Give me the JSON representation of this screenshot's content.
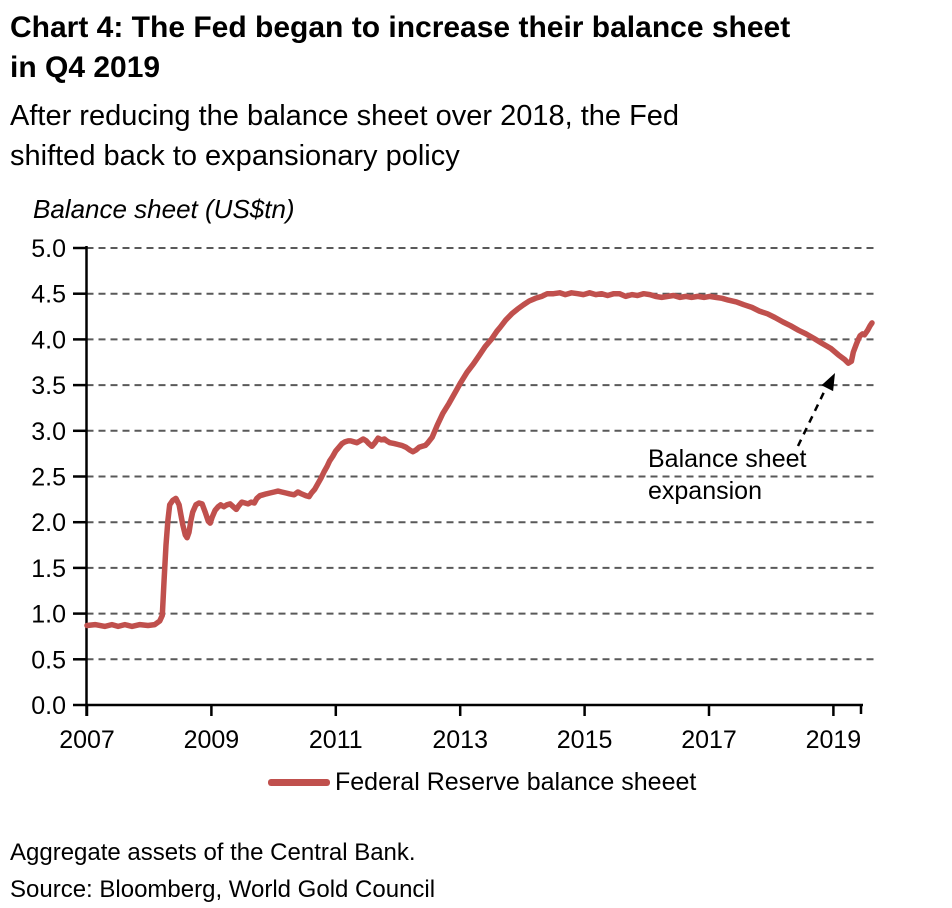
{
  "title": {
    "line1": "Chart 4: The Fed began to increase their balance sheet",
    "line2": "in Q4 2019"
  },
  "subtitle": {
    "line1": "After reducing the balance sheet over 2018, the Fed",
    "line2": "shifted back to expansionary policy"
  },
  "axis_title": "Balance sheet (US$tn)",
  "annotation": {
    "line1": "Balance sheet",
    "line2": "expansion"
  },
  "legend": {
    "label": "Federal Reserve balance sheeet"
  },
  "footnote": "Aggregate assets of the Central Bank.",
  "source": "Source: Bloomberg, World Gold Council",
  "colors": {
    "line": "#C0504D",
    "grid": "#595959",
    "axis": "#000000",
    "text": "#000000"
  },
  "chart_data": {
    "type": "line",
    "title": "Chart 4: The Fed began to increase their balance sheet in Q4 2019",
    "xlabel": "",
    "ylabel": "Balance sheet (US$tn)",
    "xlim": [
      2007,
      2019.72
    ],
    "ylim": [
      0,
      5
    ],
    "x_ticks": [
      2007,
      2009,
      2011,
      2013,
      2015,
      2017,
      2019
    ],
    "y_ticks": [
      0.0,
      0.5,
      1.0,
      1.5,
      2.0,
      2.5,
      3.0,
      3.5,
      4.0,
      4.5,
      5.0
    ],
    "grid": "horizontal-dashed",
    "legend_position": "bottom",
    "annotations": [
      {
        "text": "Balance sheet expansion",
        "arrow_points_to": [
          2019.24,
          3.74
        ]
      }
    ],
    "series": [
      {
        "name": "Federal Reserve balance sheeet",
        "color": "#C0504D",
        "points": [
          [
            2007.0,
            0.87
          ],
          [
            2007.13,
            0.88
          ],
          [
            2007.29,
            0.86
          ],
          [
            2007.4,
            0.88
          ],
          [
            2007.5,
            0.86
          ],
          [
            2007.61,
            0.88
          ],
          [
            2007.72,
            0.86
          ],
          [
            2007.85,
            0.88
          ],
          [
            2007.98,
            0.87
          ],
          [
            2008.09,
            0.88
          ],
          [
            2008.17,
            0.92
          ],
          [
            2008.21,
            0.98
          ],
          [
            2008.24,
            1.37
          ],
          [
            2008.27,
            1.75
          ],
          [
            2008.3,
            2.02
          ],
          [
            2008.33,
            2.19
          ],
          [
            2008.38,
            2.24
          ],
          [
            2008.43,
            2.26
          ],
          [
            2008.48,
            2.19
          ],
          [
            2008.51,
            2.08
          ],
          [
            2008.54,
            1.97
          ],
          [
            2008.58,
            1.86
          ],
          [
            2008.61,
            1.83
          ],
          [
            2008.64,
            1.89
          ],
          [
            2008.67,
            2.02
          ],
          [
            2008.7,
            2.11
          ],
          [
            2008.75,
            2.19
          ],
          [
            2008.8,
            2.21
          ],
          [
            2008.85,
            2.2
          ],
          [
            2008.9,
            2.11
          ],
          [
            2008.95,
            2.01
          ],
          [
            2008.98,
            1.99
          ],
          [
            2009.01,
            2.05
          ],
          [
            2009.06,
            2.13
          ],
          [
            2009.11,
            2.17
          ],
          [
            2009.15,
            2.19
          ],
          [
            2009.2,
            2.17
          ],
          [
            2009.25,
            2.19
          ],
          [
            2009.3,
            2.2
          ],
          [
            2009.35,
            2.17
          ],
          [
            2009.4,
            2.14
          ],
          [
            2009.44,
            2.18
          ],
          [
            2009.49,
            2.22
          ],
          [
            2009.54,
            2.21
          ],
          [
            2009.59,
            2.2
          ],
          [
            2009.64,
            2.22
          ],
          [
            2009.69,
            2.21
          ],
          [
            2009.73,
            2.26
          ],
          [
            2009.78,
            2.29
          ],
          [
            2009.83,
            2.3
          ],
          [
            2009.88,
            2.31
          ],
          [
            2009.94,
            2.32
          ],
          [
            2010.01,
            2.33
          ],
          [
            2010.07,
            2.34
          ],
          [
            2010.13,
            2.33
          ],
          [
            2010.2,
            2.32
          ],
          [
            2010.26,
            2.31
          ],
          [
            2010.33,
            2.3
          ],
          [
            2010.39,
            2.33
          ],
          [
            2010.45,
            2.31
          ],
          [
            2010.52,
            2.29
          ],
          [
            2010.57,
            2.28
          ],
          [
            2010.61,
            2.32
          ],
          [
            2010.66,
            2.36
          ],
          [
            2010.71,
            2.42
          ],
          [
            2010.76,
            2.48
          ],
          [
            2010.81,
            2.55
          ],
          [
            2010.86,
            2.61
          ],
          [
            2010.9,
            2.67
          ],
          [
            2010.95,
            2.72
          ],
          [
            2011.0,
            2.78
          ],
          [
            2011.05,
            2.82
          ],
          [
            2011.1,
            2.86
          ],
          [
            2011.15,
            2.88
          ],
          [
            2011.2,
            2.89
          ],
          [
            2011.24,
            2.89
          ],
          [
            2011.29,
            2.88
          ],
          [
            2011.34,
            2.87
          ],
          [
            2011.39,
            2.89
          ],
          [
            2011.44,
            2.91
          ],
          [
            2011.49,
            2.89
          ],
          [
            2011.53,
            2.86
          ],
          [
            2011.58,
            2.83
          ],
          [
            2011.63,
            2.87
          ],
          [
            2011.68,
            2.92
          ],
          [
            2011.73,
            2.9
          ],
          [
            2011.78,
            2.91
          ],
          [
            2011.82,
            2.89
          ],
          [
            2011.87,
            2.87
          ],
          [
            2011.94,
            2.86
          ],
          [
            2012.0,
            2.85
          ],
          [
            2012.06,
            2.84
          ],
          [
            2012.13,
            2.82
          ],
          [
            2012.19,
            2.79
          ],
          [
            2012.24,
            2.77
          ],
          [
            2012.29,
            2.79
          ],
          [
            2012.34,
            2.82
          ],
          [
            2012.39,
            2.83
          ],
          [
            2012.44,
            2.84
          ],
          [
            2012.48,
            2.87
          ],
          [
            2012.55,
            2.93
          ],
          [
            2012.63,
            3.06
          ],
          [
            2012.72,
            3.19
          ],
          [
            2012.82,
            3.3
          ],
          [
            2012.92,
            3.42
          ],
          [
            2013.01,
            3.53
          ],
          [
            2013.11,
            3.64
          ],
          [
            2013.21,
            3.73
          ],
          [
            2013.3,
            3.82
          ],
          [
            2013.4,
            3.92
          ],
          [
            2013.5,
            4.0
          ],
          [
            2013.59,
            4.09
          ],
          [
            2013.64,
            4.13
          ],
          [
            2013.73,
            4.21
          ],
          [
            2013.83,
            4.28
          ],
          [
            2013.92,
            4.33
          ],
          [
            2014.02,
            4.38
          ],
          [
            2014.11,
            4.42
          ],
          [
            2014.21,
            4.45
          ],
          [
            2014.31,
            4.47
          ],
          [
            2014.4,
            4.5
          ],
          [
            2014.5,
            4.5
          ],
          [
            2014.6,
            4.51
          ],
          [
            2014.69,
            4.49
          ],
          [
            2014.79,
            4.51
          ],
          [
            2014.89,
            4.5
          ],
          [
            2014.98,
            4.49
          ],
          [
            2015.08,
            4.51
          ],
          [
            2015.18,
            4.49
          ],
          [
            2015.27,
            4.5
          ],
          [
            2015.37,
            4.48
          ],
          [
            2015.47,
            4.5
          ],
          [
            2015.56,
            4.5
          ],
          [
            2015.66,
            4.47
          ],
          [
            2015.76,
            4.49
          ],
          [
            2015.85,
            4.48
          ],
          [
            2015.95,
            4.5
          ],
          [
            2016.05,
            4.49
          ],
          [
            2016.14,
            4.47
          ],
          [
            2016.24,
            4.46
          ],
          [
            2016.34,
            4.47
          ],
          [
            2016.43,
            4.48
          ],
          [
            2016.53,
            4.46
          ],
          [
            2016.63,
            4.47
          ],
          [
            2016.72,
            4.46
          ],
          [
            2016.82,
            4.47
          ],
          [
            2016.92,
            4.46
          ],
          [
            2017.01,
            4.47
          ],
          [
            2017.11,
            4.46
          ],
          [
            2017.21,
            4.45
          ],
          [
            2017.31,
            4.43
          ],
          [
            2017.44,
            4.41
          ],
          [
            2017.56,
            4.38
          ],
          [
            2017.69,
            4.35
          ],
          [
            2017.81,
            4.31
          ],
          [
            2017.94,
            4.28
          ],
          [
            2018.06,
            4.24
          ],
          [
            2018.19,
            4.19
          ],
          [
            2018.31,
            4.15
          ],
          [
            2018.44,
            4.1
          ],
          [
            2018.56,
            4.06
          ],
          [
            2018.69,
            4.01
          ],
          [
            2018.81,
            3.96
          ],
          [
            2018.96,
            3.9
          ],
          [
            2019.08,
            3.83
          ],
          [
            2019.18,
            3.78
          ],
          [
            2019.24,
            3.74
          ],
          [
            2019.29,
            3.76
          ],
          [
            2019.32,
            3.86
          ],
          [
            2019.37,
            3.95
          ],
          [
            2019.4,
            4.0
          ],
          [
            2019.43,
            4.04
          ],
          [
            2019.47,
            4.06
          ],
          [
            2019.5,
            4.05
          ],
          [
            2019.55,
            4.1
          ],
          [
            2019.59,
            4.15
          ],
          [
            2019.62,
            4.18
          ]
        ]
      }
    ]
  }
}
